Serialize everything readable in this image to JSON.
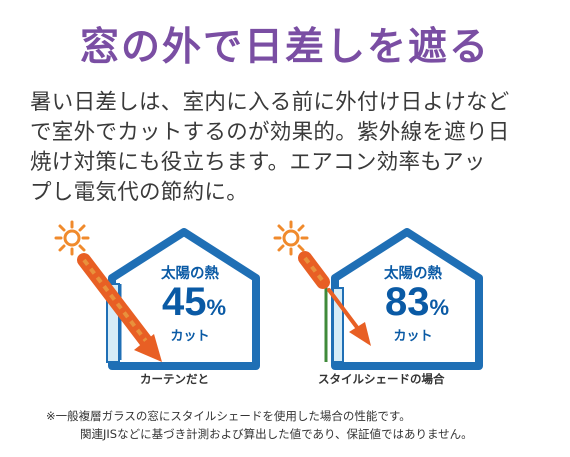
{
  "title": "窓の外で日差しを遮る",
  "body_lines": [
    "暑い日差しは、室内に入る前に外付け日よけなど",
    "で室外でカットするのが効果的。紫外線を遮り日",
    "焼け対策にも役立ちます。エアコン効率もアッ",
    "プし電気代の節約に。"
  ],
  "panels": [
    {
      "heat_label": "太陽の熱",
      "percent": "45",
      "unit": "%",
      "cut_label": "カット",
      "caption": "カーテンだと"
    },
    {
      "heat_label": "太陽の熱",
      "percent": "83",
      "unit": "%",
      "cut_label": "カット",
      "caption": "スタイルシェードの場合"
    }
  ],
  "notes": [
    "※一般複層ガラスの窓にスタイルシェードを使用した場合の性能です。",
    "関連JISなどに基づき計測および算出した値であり、保証値ではありません。"
  ],
  "colors": {
    "title": "#7a4ea3",
    "house": "#1f6fb5",
    "value_text": "#0a5aa5",
    "sun": "#f08a2c",
    "ray": "#e85f24",
    "ray_inner": "#e8913c",
    "shade": "#3f8a3a"
  },
  "icons": [
    "sun-icon",
    "heat-ray-arrow-icon",
    "house-icon"
  ]
}
